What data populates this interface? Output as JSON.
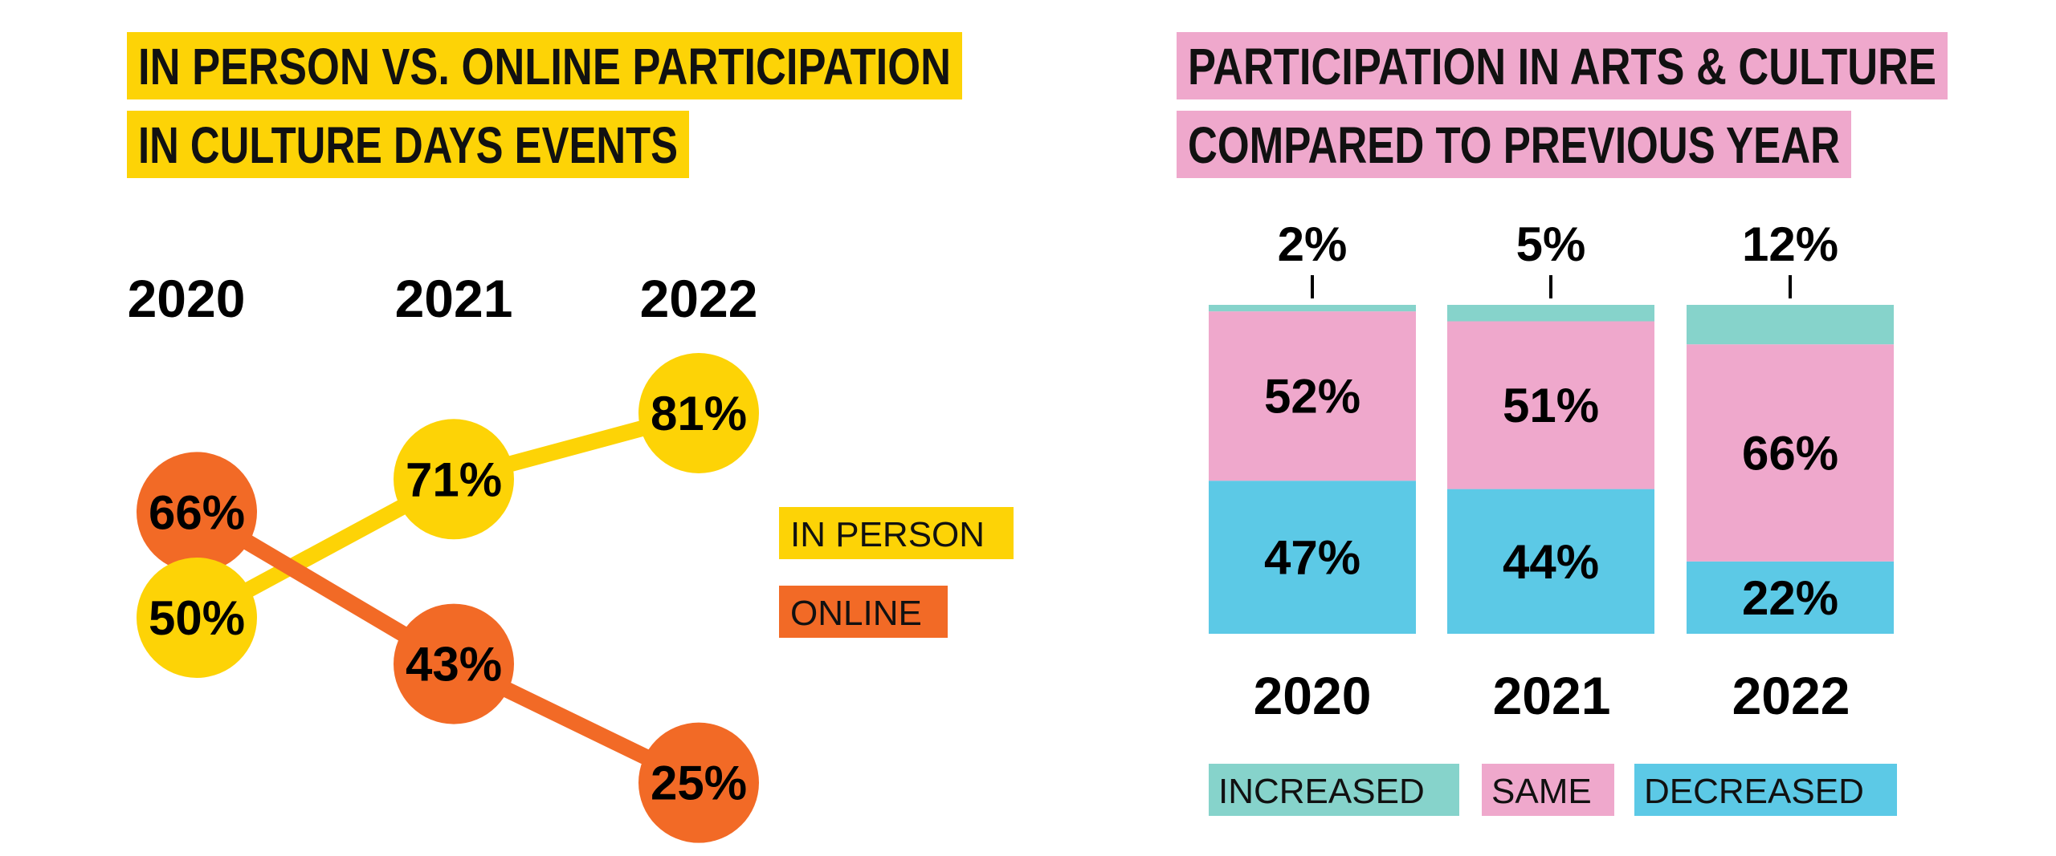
{
  "chart_data": [
    {
      "type": "line",
      "title_lines": [
        "IN PERSON VS. ONLINE PARTICIPATION",
        "IN CULTURE DAYS EVENTS"
      ],
      "x": [
        "2020",
        "2021",
        "2022"
      ],
      "series": [
        {
          "name": "IN PERSON",
          "values": [
            50,
            71,
            81
          ],
          "labels": [
            "50%",
            "71%",
            "81%"
          ],
          "color": "#FDD306"
        },
        {
          "name": "ONLINE",
          "values": [
            66,
            43,
            25
          ],
          "labels": [
            "66%",
            "43%",
            "25%"
          ],
          "color": "#F26A26"
        }
      ],
      "unit": "%",
      "legend_placement": "right",
      "title_highlight": "#FDD306"
    },
    {
      "type": "bar",
      "stacked": true,
      "title_lines": [
        "PARTICIPATION IN ARTS & CULTURE",
        "COMPARED TO PREVIOUS YEAR"
      ],
      "categories": [
        "2020",
        "2021",
        "2022"
      ],
      "series": [
        {
          "name": "DECREASED",
          "values": [
            47,
            44,
            22
          ],
          "labels": [
            "47%",
            "44%",
            "22%"
          ],
          "color": "#5CC9E6"
        },
        {
          "name": "SAME",
          "values": [
            52,
            51,
            66
          ],
          "labels": [
            "52%",
            "51%",
            "66%"
          ],
          "color": "#EFA8CC"
        },
        {
          "name": "INCREASED",
          "values": [
            2,
            5,
            12
          ],
          "labels": [
            "2%",
            "5%",
            "12%"
          ],
          "color": "#86D3CB"
        }
      ],
      "legend_order": [
        "INCREASED",
        "SAME",
        "DECREASED"
      ],
      "legend_placement": "bottom",
      "unit": "%",
      "title_highlight": "#EFA8CC"
    }
  ]
}
